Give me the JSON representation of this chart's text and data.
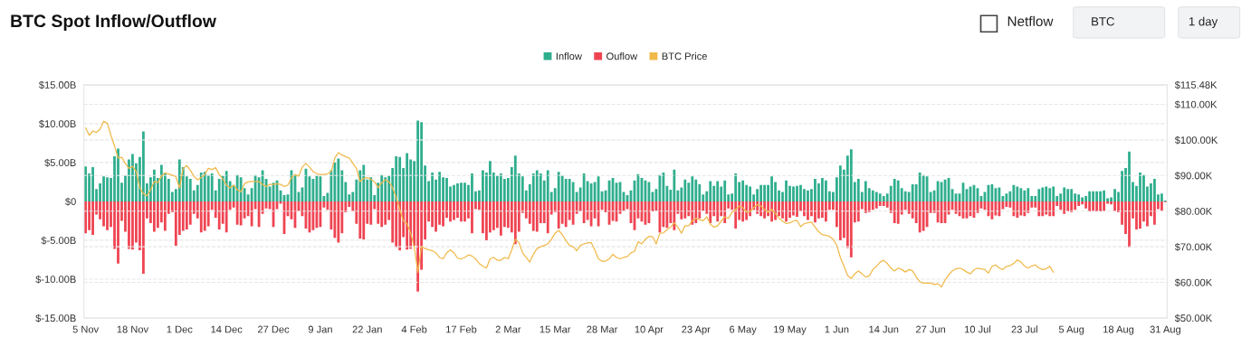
{
  "chart_data": {
    "type": "bar",
    "title": "BTC Spot Inflow/Outflow",
    "annotations": [
      "Netflow",
      "BTC",
      "1 day"
    ],
    "categories": [
      "5 Nov",
      null,
      null,
      null,
      null,
      null,
      null,
      null,
      null,
      null,
      null,
      null,
      null,
      "18 Nov",
      null,
      null,
      null,
      null,
      null,
      null,
      null,
      null,
      null,
      null,
      null,
      null,
      "1 Dec",
      null,
      null,
      null,
      null,
      null,
      null,
      null,
      null,
      null,
      null,
      null,
      null,
      "14 Dec",
      null,
      null,
      null,
      null,
      null,
      null,
      null,
      null,
      null,
      null,
      null,
      null,
      "27 Dec",
      null,
      null,
      null,
      null,
      null,
      null,
      null,
      null,
      null,
      null,
      null,
      null,
      "9 Jan",
      null,
      null,
      null,
      null,
      null,
      null,
      null,
      null,
      null,
      null,
      null,
      null,
      "22 Jan",
      null,
      null,
      null,
      null,
      null,
      null,
      null,
      null,
      null,
      null,
      null,
      null,
      "4 Feb",
      null,
      null,
      null,
      null,
      null,
      null,
      null,
      null,
      null,
      null,
      null,
      null,
      "17 Feb",
      null,
      null,
      null,
      null,
      null,
      null,
      null,
      null,
      null,
      null,
      null,
      null,
      "2 Mar",
      null,
      null,
      null,
      null,
      null,
      null,
      null,
      null,
      null,
      null,
      null,
      null,
      "15 Mar",
      null,
      null,
      null,
      null,
      null,
      null,
      null,
      null,
      null,
      null,
      null,
      null,
      "28 Mar",
      null,
      null,
      null,
      null,
      null,
      null,
      null,
      null,
      null,
      null,
      null,
      null,
      "10 Apr",
      null,
      null,
      null,
      null,
      null,
      null,
      null,
      null,
      null,
      null,
      null,
      null,
      "23 Apr",
      null,
      null,
      null,
      null,
      null,
      null,
      null,
      null,
      null,
      null,
      null,
      null,
      "6 May",
      null,
      null,
      null,
      null,
      null,
      null,
      null,
      null,
      null,
      null,
      null,
      null,
      "19 May",
      null,
      null,
      null,
      null,
      null,
      null,
      null,
      null,
      null,
      null,
      null,
      null,
      "1 Jun",
      null,
      null,
      null,
      null,
      null,
      null,
      null,
      null,
      null,
      null,
      null,
      null,
      "14 Jun",
      null,
      null,
      null,
      null,
      null,
      null,
      null,
      null,
      null,
      null,
      null,
      null,
      "27 Jun",
      null,
      null,
      null,
      null,
      null,
      null,
      null,
      null,
      null,
      null,
      null,
      null,
      "10 Jul",
      null,
      null,
      null,
      null,
      null,
      null,
      null,
      null,
      null,
      null,
      null,
      null,
      "23 Jul",
      null,
      null,
      null,
      null,
      null,
      null,
      null,
      null,
      null,
      null,
      null,
      null,
      "5 Aug",
      null,
      null,
      null,
      null,
      null,
      null,
      null,
      null,
      null,
      null,
      null,
      null,
      "18 Aug",
      null,
      null,
      null,
      null,
      null,
      null,
      null,
      null,
      null,
      null,
      null,
      null,
      "31 Aug"
    ],
    "series": [
      {
        "name": "Inflow",
        "color": "#2fae8e",
        "values": [
          4.5,
          3.6,
          4.4,
          1.6,
          2.3,
          3.2,
          3.1,
          3.0,
          5.8,
          6.8,
          2.4,
          3.3,
          5.4,
          6.1,
          4.9,
          5.7,
          9.0,
          2.3,
          3.1,
          4.1,
          3.0,
          4.7,
          3.7,
          2.9,
          1.2,
          1.6,
          5.4,
          4.4,
          3.2,
          2.9,
          1.4,
          2.1,
          3.7,
          3.8,
          3.4,
          3.6,
          1.4,
          2.9,
          3.3,
          3.9,
          2.6,
          2.1,
          3.4,
          3.1,
          1.7,
          0.9,
          1.7,
          3.4,
          3.1,
          4.0,
          2.9,
          1.9,
          2.4,
          2.7,
          1.4,
          0.8,
          0.9,
          4.0,
          3.4,
          1.2,
          1.8,
          4.2,
          3.2,
          2.9,
          3.3,
          3.2,
          0.7,
          1.1,
          4.0,
          5.0,
          5.5,
          4.0,
          2.5,
          0.9,
          1.2,
          2.8,
          4.0,
          4.7,
          2.8,
          3.1,
          0.8,
          2.4,
          3.4,
          3.1,
          3.3,
          4.3,
          5.8,
          5.7,
          4.3,
          6.2,
          5.4,
          5.2,
          10.4,
          10.2,
          4.6,
          2.6,
          3.7,
          2.8,
          3.8,
          3.1,
          3.0,
          1.9,
          2.1,
          2.3,
          2.4,
          2.4,
          2.1,
          3.6,
          1.3,
          1.4,
          4.0,
          3.7,
          5.2,
          3.7,
          3.3,
          3.6,
          2.9,
          3.0,
          4.4,
          5.9,
          3.6,
          3.2,
          1.4,
          2.2,
          3.6,
          4.0,
          3.6,
          2.7,
          4.0,
          1.2,
          1.7,
          3.8,
          3.3,
          2.9,
          2.9,
          2.5,
          1.2,
          1.8,
          3.6,
          2.6,
          2.3,
          2.5,
          3.2,
          1.3,
          1.4,
          2.7,
          3.0,
          2.4,
          2.5,
          1.2,
          0.8,
          1.4,
          2.7,
          3.5,
          3.0,
          2.7,
          2.5,
          1.2,
          1.6,
          3.4,
          3.7,
          2.0,
          1.5,
          4.1,
          1.4,
          1.8,
          2.8,
          2.4,
          3.2,
          2.8,
          2.2,
          0.9,
          1.3,
          2.6,
          2.0,
          2.6,
          1.9,
          2.7,
          0.9,
          1.0,
          3.6,
          2.5,
          2.7,
          2.1,
          1.9,
          0.9,
          1.6,
          2.1,
          2.1,
          2.1,
          3.2,
          2.5,
          1.4,
          1.2,
          2.7,
          2.0,
          1.9,
          2.0,
          2.1,
          1.6,
          1.4,
          1.6,
          2.9,
          2.3,
          3.0,
          2.7,
          1.3,
          1.2,
          3.1,
          4.6,
          4.1,
          5.9,
          6.7,
          2.5,
          2.9,
          1.2,
          2.6,
          1.7,
          1.4,
          1.2,
          1.0,
          0.7,
          1.0,
          2.0,
          2.9,
          2.7,
          1.7,
          1.3,
          1.2,
          2.2,
          2.2,
          3.7,
          3.4,
          3.2,
          1.2,
          1.4,
          2.6,
          2.5,
          2.8,
          3.0,
          1.6,
          1.0,
          1.0,
          2.4,
          1.6,
          1.9,
          2.1,
          1.7,
          0.7,
          1.2,
          2.1,
          2.2,
          1.7,
          1.8,
          0.7,
          1.0,
          1.3,
          2.1,
          1.9,
          1.7,
          1.4,
          1.7,
          0.7,
          0.7,
          1.6,
          1.8,
          1.9,
          1.7,
          1.9,
          0.7,
          1.0,
          1.8,
          1.6,
          1.6,
          1.0,
          0.9,
          0.5,
          0.7,
          1.3,
          1.3,
          1.3,
          1.3,
          1.4,
          0.4,
          0.5,
          1.6,
          1.2,
          3.9,
          4.3,
          6.4,
          2.5,
          2.0,
          3.7,
          3.4,
          1.9,
          2.3,
          2.9,
          0.9,
          1.0,
          0.1
        ]
      },
      {
        "name": "Ouflow",
        "color": "#ef4452",
        "values": [
          -4.1,
          -3.7,
          -4.3,
          -1.7,
          -2.3,
          -3.2,
          -3.7,
          -3.3,
          -6.1,
          -8.0,
          -2.5,
          -3.9,
          -6.1,
          -6.2,
          -5.3,
          -6.3,
          -9.3,
          -2.2,
          -2.8,
          -3.9,
          -3.4,
          -2.7,
          -3.8,
          -1.6,
          -1.4,
          -5.7,
          -4.3,
          -3.8,
          -3.6,
          -3.0,
          -1.6,
          -2.2,
          -4.0,
          -3.8,
          -3.2,
          -1.1,
          -2.1,
          -3.6,
          -2.9,
          -4.0,
          -1.1,
          -0.8,
          -3.0,
          -3.1,
          -2.2,
          -1.9,
          -3.2,
          -1.0,
          -3.3,
          -1.6,
          -0.9,
          -1.0,
          -3.3,
          -1.0,
          -0.3,
          -4.2,
          -1.9,
          -2.3,
          -3.4,
          -1.3,
          -1.9,
          -3.5,
          -4.0,
          -3.7,
          -3.4,
          -3.3,
          -0.8,
          -1.1,
          -3.6,
          -4.7,
          -5.3,
          -4.1,
          -1.4,
          -0.7,
          -1.3,
          -2.9,
          -4.8,
          -4.9,
          -2.9,
          -3.0,
          -1.0,
          -2.9,
          -3.3,
          -3.0,
          -2.4,
          -5.3,
          -5.9,
          -6.3,
          -4.6,
          -6.2,
          -6.1,
          -5.7,
          -11.6,
          -8.8,
          -4.9,
          -2.6,
          -3.3,
          -3.9,
          -3.0,
          -3.2,
          -2.1,
          -2.6,
          -2.4,
          -2.1,
          -2.6,
          -2.6,
          -2.2,
          -4.1,
          -1.0,
          -1.1,
          -4.1,
          -5.0,
          -4.0,
          -3.7,
          -3.4,
          -4.4,
          -3.3,
          -3.4,
          -4.0,
          -5.5,
          -3.9,
          -1.5,
          -2.2,
          -2.9,
          -3.8,
          -3.9,
          -2.8,
          -2.8,
          -4.1,
          -1.7,
          -1.4,
          -3.5,
          -2.9,
          -3.3,
          -2.4,
          -3.0,
          -1.6,
          -1.3,
          -2.8,
          -2.4,
          -3.2,
          -2.2,
          -3.2,
          -1.1,
          -1.4,
          -3.0,
          -2.5,
          -2.6,
          -1.6,
          -1.2,
          -1.0,
          -2.8,
          -3.7,
          -2.2,
          -2.6,
          -3.0,
          -2.8,
          -1.3,
          -1.2,
          -4.0,
          -3.3,
          -3.4,
          -2.8,
          -3.7,
          -1.6,
          -2.3,
          -2.2,
          -1.9,
          -3.0,
          -2.8,
          -2.2,
          -1.2,
          -1.6,
          -2.8,
          -1.9,
          -2.6,
          -1.9,
          -2.8,
          -0.9,
          -1.1,
          -3.5,
          -2.4,
          -2.6,
          -2.4,
          -1.9,
          -1.1,
          -1.6,
          -1.9,
          -2.2,
          -1.9,
          -2.6,
          -2.4,
          -1.9,
          -2.2,
          -2.6,
          -2.1,
          -1.8,
          -2.0,
          -1.3,
          -1.9,
          -2.4,
          -1.9,
          -2.7,
          -2.2,
          -2.1,
          -2.6,
          -1.1,
          -1.1,
          -3.3,
          -5.0,
          -4.7,
          -6.0,
          -7.2,
          -2.7,
          -2.6,
          -1.0,
          -1.5,
          -1.4,
          -1.1,
          -0.9,
          -0.6,
          -0.6,
          -0.8,
          -1.5,
          -2.8,
          -2.9,
          -1.7,
          -1.1,
          -1.6,
          -2.2,
          -2.8,
          -4.0,
          -3.8,
          -3.3,
          -1.5,
          -1.5,
          -2.7,
          -2.8,
          -2.8,
          -1.7,
          -1.1,
          -1.6,
          -1.9,
          -2.2,
          -2.2,
          -1.9,
          -2.1,
          -1.5,
          -0.9,
          -1.1,
          -1.9,
          -2.3,
          -1.8,
          -1.9,
          -1.0,
          -0.7,
          -0.8,
          -1.9,
          -2.1,
          -1.8,
          -1.9,
          -1.5,
          -0.8,
          -0.8,
          -1.9,
          -1.9,
          -1.7,
          -1.9,
          -1.9,
          -0.6,
          -1.1,
          -1.6,
          -1.3,
          -1.4,
          -1.1,
          -0.6,
          -0.4,
          -0.9,
          -1.3,
          -1.3,
          -1.3,
          -1.3,
          -1.3,
          -0.3,
          -0.4,
          -1.3,
          -1.4,
          -3.0,
          -4.2,
          -5.9,
          -2.2,
          -3.6,
          -3.5,
          -2.6,
          -3.2,
          -1.9,
          -3.0,
          -1.0,
          -1.2,
          -0.1
        ]
      },
      {
        "name": "BTC Price",
        "type": "line",
        "axis": "y2",
        "color": "#f0b94a",
        "values": [
          103.4,
          101.3,
          102.5,
          102.1,
          103.0,
          105.2,
          104.7,
          101.3,
          98.3,
          94.9,
          95.1,
          93.4,
          92.0,
          92.6,
          91.1,
          86.5,
          84.9,
          84.3,
          86.0,
          88.3,
          88.0,
          89.8,
          90.7,
          90.4,
          90.1,
          89.7,
          86.5,
          92.0,
          92.8,
          91.5,
          89.8,
          88.8,
          89.4,
          90.3,
          92.0,
          91.7,
          92.2,
          90.3,
          89.0,
          87.3,
          86.5,
          87.3,
          86.0,
          85.4,
          87.7,
          88.2,
          88.3,
          88.3,
          88.3,
          87.5,
          86.9,
          87.5,
          87.5,
          87.7,
          87.5,
          86.9,
          87.3,
          89.4,
          90.3,
          89.8,
          92.4,
          93.4,
          92.4,
          91.1,
          90.5,
          90.3,
          90.3,
          90.5,
          91.1,
          94.9,
          96.4,
          95.8,
          95.3,
          94.9,
          93.4,
          92.0,
          88.3,
          89.2,
          89.4,
          89.0,
          88.2,
          86.6,
          88.0,
          88.8,
          88.3,
          86.5,
          83.9,
          80.5,
          77.2,
          76.5,
          73.8,
          70.0,
          62.8,
          70.0,
          69.5,
          69.1,
          68.9,
          68.3,
          67.0,
          66.6,
          68.3,
          69.1,
          68.3,
          66.8,
          66.6,
          67.0,
          67.7,
          67.4,
          66.6,
          65.3,
          64.5,
          64.0,
          66.6,
          67.0,
          66.2,
          66.2,
          67.0,
          66.6,
          69.1,
          72.1,
          71.2,
          68.3,
          67.0,
          65.7,
          67.9,
          69.5,
          70.0,
          70.4,
          70.8,
          72.1,
          73.8,
          74.6,
          73.4,
          71.7,
          70.4,
          70.0,
          68.9,
          70.4,
          70.8,
          71.1,
          71.2,
          69.1,
          66.6,
          65.9,
          66.0,
          66.6,
          67.9,
          67.0,
          66.6,
          67.0,
          67.2,
          68.3,
          68.7,
          71.4,
          70.8,
          72.1,
          72.9,
          72.8,
          70.8,
          73.8,
          73.9,
          74.8,
          75.5,
          76.7,
          75.5,
          73.8,
          75.9,
          75.9,
          77.3,
          78.0,
          77.6,
          77.3,
          78.4,
          76.3,
          75.5,
          75.9,
          77.2,
          78.4,
          78.0,
          79.7,
          80.5,
          81.4,
          81.0,
          79.7,
          79.9,
          81.0,
          81.8,
          81.4,
          80.5,
          79.7,
          80.5,
          79.3,
          78.0,
          77.2,
          76.5,
          76.7,
          77.2,
          77.4,
          75.6,
          76.5,
          76.7,
          76.9,
          75.5,
          74.2,
          73.4,
          73.2,
          72.9,
          72.1,
          70.4,
          67.0,
          64.5,
          61.9,
          61.1,
          62.4,
          63.2,
          62.4,
          61.5,
          61.8,
          63.6,
          64.5,
          65.7,
          66.2,
          65.3,
          64.0,
          63.2,
          64.0,
          63.6,
          62.9,
          63.6,
          63.2,
          61.5,
          60.2,
          59.8,
          59.8,
          59.8,
          59.4,
          59.6,
          58.7,
          60.7,
          62.1,
          63.2,
          63.8,
          64.0,
          63.6,
          62.9,
          62.4,
          63.5,
          64.0,
          63.8,
          63.6,
          62.6,
          64.5,
          64.9,
          64.0,
          63.6,
          64.5,
          64.7,
          65.3,
          66.3,
          65.7,
          64.6,
          64.0,
          64.6,
          64.9,
          64.0,
          63.6,
          63.8,
          64.5,
          62.8,
          null,
          null,
          null,
          null,
          null,
          null,
          null,
          null,
          null,
          null,
          null,
          null,
          null,
          null,
          null,
          null,
          null,
          null,
          null,
          null,
          null,
          null,
          null,
          null,
          null,
          null,
          null,
          null,
          null,
          null,
          null
        ]
      }
    ],
    "ylim": [
      -15,
      15
    ],
    "yticks": [
      {
        "value": -15,
        "label": "$-15.00B"
      },
      {
        "value": -10,
        "label": "$-10.00B"
      },
      {
        "value": -5,
        "label": "$-5.00B"
      },
      {
        "value": 0,
        "label": "$0"
      },
      {
        "value": 5,
        "label": "$5.00B"
      },
      {
        "value": 10,
        "label": "$10.00B"
      },
      {
        "value": 15,
        "label": "$15.00B"
      }
    ],
    "y2lim": [
      50,
      115.48
    ],
    "y2ticks": [
      {
        "value": 50,
        "label": "$50.00K"
      },
      {
        "value": 60,
        "label": "$60.00K"
      },
      {
        "value": 70,
        "label": "$70.00K"
      },
      {
        "value": 80,
        "label": "$80.00K"
      },
      {
        "value": 90,
        "label": "$90.00K"
      },
      {
        "value": 100,
        "label": "$100.00K"
      },
      {
        "value": 110,
        "label": "$110.00K"
      },
      {
        "value": 115.48,
        "label": "$115.48K"
      }
    ],
    "stacked": true,
    "grid": "y",
    "legend": "top"
  }
}
